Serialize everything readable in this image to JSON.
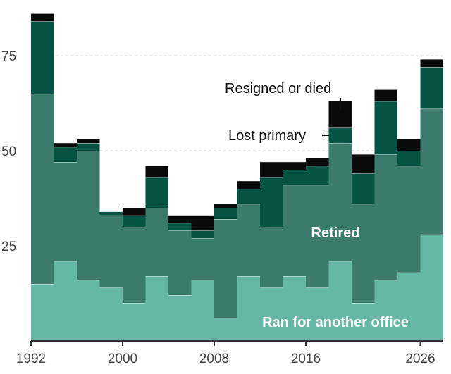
{
  "chart_data": {
    "type": "bar",
    "stacked": true,
    "title": "",
    "xlabel": "",
    "ylabel": "",
    "x": [
      1992,
      1994,
      1996,
      1998,
      2000,
      2002,
      2004,
      2006,
      2008,
      2010,
      2012,
      2014,
      2016,
      2018,
      2020,
      2022,
      2024,
      2026
    ],
    "xticks": [
      "1992",
      "2000",
      "2008",
      "2016",
      "2026"
    ],
    "yticks": [
      "25",
      "50",
      "75"
    ],
    "ylim": [
      0,
      88
    ],
    "grid": true,
    "series": [
      {
        "name": "Ran for another office",
        "color": "#66b8a6",
        "values": [
          15,
          21,
          16,
          14,
          10,
          17,
          12,
          16,
          6,
          17,
          14,
          17,
          14,
          21,
          10,
          16,
          18,
          28
        ]
      },
      {
        "name": "Retired",
        "color": "#3a7b6c",
        "values": [
          50,
          26,
          34,
          19,
          20,
          18,
          17,
          11,
          26,
          19,
          16,
          24,
          27,
          31,
          26,
          33,
          28,
          33
        ]
      },
      {
        "name": "Lost primary",
        "color": "#055443",
        "values": [
          19,
          4,
          2,
          1,
          3,
          8,
          2,
          2,
          3,
          4,
          13,
          4,
          5,
          4,
          8,
          14,
          4,
          11
        ]
      },
      {
        "name": "Resigned or died",
        "color": "#0a0a0a",
        "values": [
          2,
          1,
          1,
          0,
          2,
          3,
          2,
          4,
          1,
          2,
          4,
          2,
          2,
          7,
          5,
          3,
          3,
          2
        ]
      }
    ]
  }
}
